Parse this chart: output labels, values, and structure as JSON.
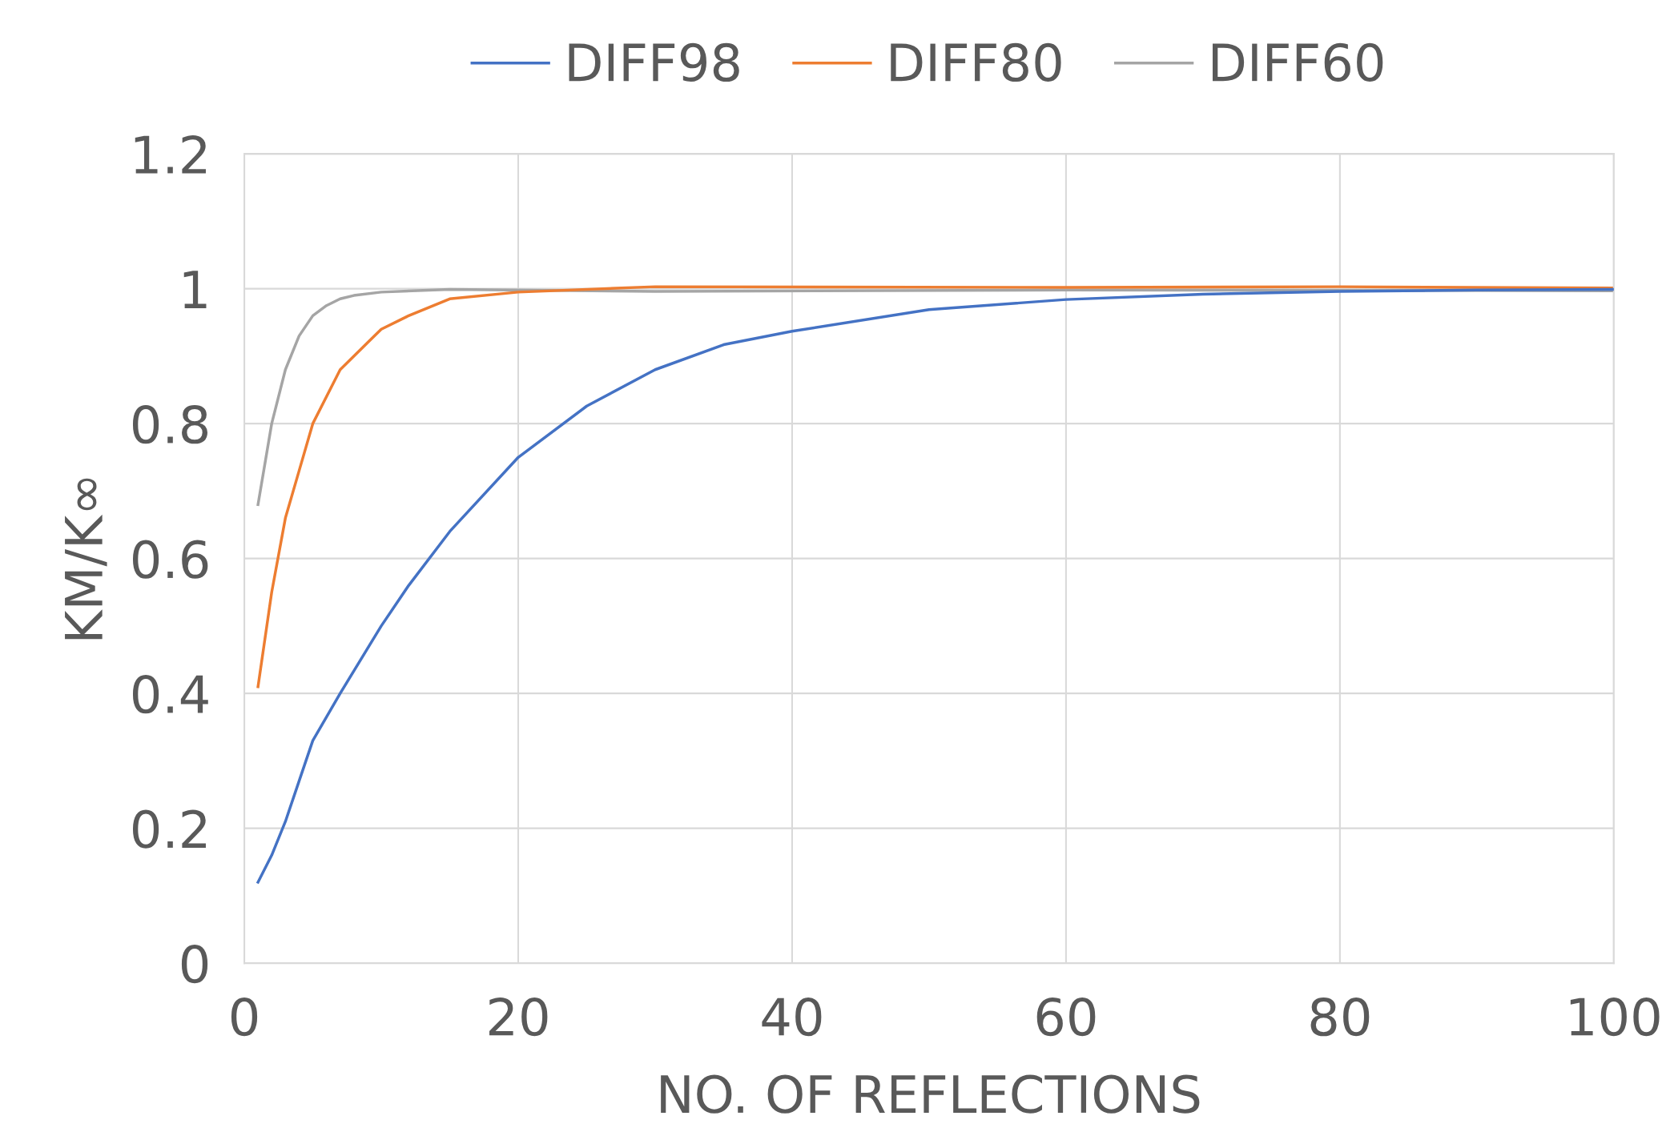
{
  "chart_data": {
    "type": "line",
    "xlabel": "NO. OF REFLECTIONS",
    "ylabel": "KM/K∞",
    "xlim": [
      0,
      100
    ],
    "xticks": [
      0,
      20,
      40,
      60,
      80,
      100
    ],
    "ylim": [
      0,
      1.2
    ],
    "yticks": [
      0,
      0.2,
      0.4,
      0.6,
      0.8,
      1,
      1.2
    ],
    "grid": true,
    "legend": "top",
    "marker": "none",
    "line_style": "solid",
    "series": [
      {
        "name": "DIFF98",
        "color": "#4472c4",
        "x": [
          1,
          2,
          3,
          4,
          5,
          7,
          10,
          12,
          15,
          20,
          25,
          30,
          35,
          40,
          50,
          60,
          70,
          80,
          90,
          100
        ],
        "values": [
          0.12,
          0.16,
          0.21,
          0.27,
          0.33,
          0.4,
          0.5,
          0.56,
          0.64,
          0.75,
          0.826,
          0.88,
          0.917,
          0.937,
          0.969,
          0.984,
          0.992,
          0.996,
          0.998,
          0.999
        ]
      },
      {
        "name": "DIFF80",
        "color": "#ed7d31",
        "x": [
          1,
          2,
          3,
          4,
          5,
          7,
          9,
          10,
          12,
          15,
          20,
          30,
          60,
          80,
          100
        ],
        "values": [
          0.41,
          0.55,
          0.66,
          0.73,
          0.8,
          0.88,
          0.92,
          0.94,
          0.96,
          0.985,
          0.995,
          1.003,
          1.002,
          1.003,
          1.001
        ]
      },
      {
        "name": "DIFF60",
        "color": "#a5a5a5",
        "x": [
          1,
          2,
          3,
          4,
          5,
          6,
          7,
          8,
          10,
          15,
          30,
          60,
          100
        ],
        "values": [
          0.68,
          0.8,
          0.88,
          0.93,
          0.96,
          0.975,
          0.985,
          0.99,
          0.995,
          0.999,
          0.996,
          0.998,
          0.997
        ]
      }
    ]
  }
}
